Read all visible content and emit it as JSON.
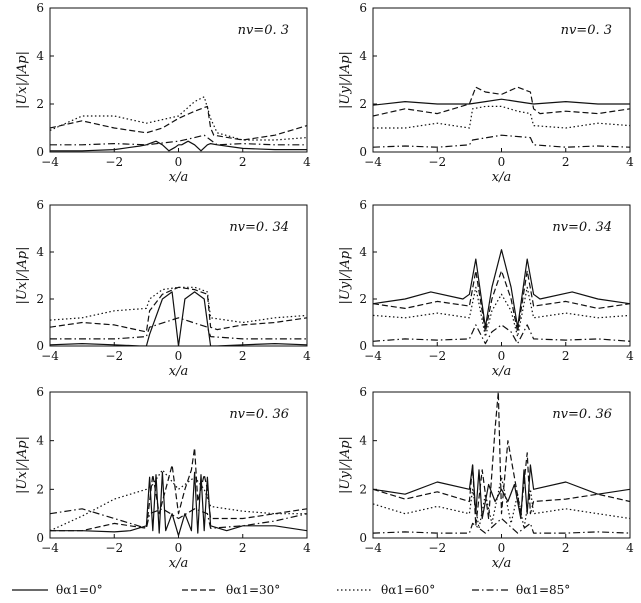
{
  "legend": [
    {
      "label": "θα1=0°",
      "dash": "solid"
    },
    {
      "label": "θα1=30°",
      "dash": "dashed"
    },
    {
      "label": "θα1=60°",
      "dash": "dotted"
    },
    {
      "label": "θα1=85°",
      "dash": "dashdot"
    }
  ],
  "chart_data": [
    {
      "type": "line",
      "xlabel": "x/a",
      "ylabel": "|Ux|/|Ap|",
      "nv_label": "nv=0. 3",
      "xlim": [
        -4,
        4
      ],
      "ylim": [
        0,
        6
      ],
      "xticks": [
        "-4",
        "-2",
        "0",
        "2",
        "4"
      ],
      "yticks": [
        "0",
        "2",
        "4",
        "6"
      ],
      "series": [
        {
          "name": "θα1=0°",
          "x": [
            -4,
            -3,
            -2,
            -1.2,
            -1,
            -0.9,
            -0.7,
            -0.5,
            -0.3,
            -0.1,
            0,
            0.1,
            0.3,
            0.5,
            0.7,
            0.9,
            1,
            1.2,
            2,
            3,
            4
          ],
          "y": [
            0.05,
            0.05,
            0.1,
            0.25,
            0.3,
            0.35,
            0.45,
            0.3,
            0.05,
            0.2,
            0.3,
            0.3,
            0.45,
            0.3,
            0.05,
            0.3,
            0.35,
            0.3,
            0.15,
            0.1,
            0.1
          ]
        },
        {
          "name": "θα1=30°",
          "x": [
            -4,
            -3,
            -2,
            -1,
            -0.5,
            0,
            0.5,
            0.9,
            1,
            1.1,
            2,
            3,
            3.5,
            4
          ],
          "y": [
            1.0,
            1.3,
            1.0,
            0.8,
            1.0,
            1.4,
            1.7,
            1.9,
            1.0,
            0.7,
            0.5,
            0.7,
            0.9,
            1.1
          ]
        },
        {
          "name": "θα1=60°",
          "x": [
            -4,
            -3,
            -2,
            -1,
            0,
            0.5,
            0.8,
            1,
            1.2,
            2,
            3,
            4
          ],
          "y": [
            0.9,
            1.5,
            1.5,
            1.2,
            1.5,
            2.1,
            2.3,
            1.4,
            0.8,
            0.5,
            0.5,
            0.6
          ]
        },
        {
          "name": "θα1=85°",
          "x": [
            -4,
            -3,
            -2,
            -1,
            0,
            0.5,
            0.8,
            1,
            1.2,
            2,
            3,
            4
          ],
          "y": [
            0.3,
            0.3,
            0.35,
            0.3,
            0.45,
            0.6,
            0.7,
            0.5,
            0.3,
            0.35,
            0.3,
            0.3
          ]
        }
      ]
    },
    {
      "type": "line",
      "xlabel": "x/a",
      "ylabel": "|Uy|/|Ap|",
      "nv_label": "nv=0. 3",
      "xlim": [
        -4,
        4
      ],
      "ylim": [
        0,
        6
      ],
      "xticks": [
        "-4",
        "-2",
        "0",
        "2",
        "4"
      ],
      "yticks": [
        "0",
        "2",
        "4",
        "6"
      ],
      "series": [
        {
          "name": "θα1=0°",
          "x": [
            -4,
            -3,
            -2,
            -1,
            -0.5,
            0,
            0.5,
            1,
            2,
            3,
            4
          ],
          "y": [
            1.95,
            2.1,
            2.0,
            2.0,
            2.1,
            2.2,
            2.1,
            2.0,
            2.1,
            2.0,
            2.0
          ]
        },
        {
          "name": "θα1=30°",
          "x": [
            -4,
            -3,
            -2,
            -1,
            -0.8,
            -0.5,
            0,
            0.5,
            0.9,
            1,
            1.2,
            2,
            3,
            4
          ],
          "y": [
            1.5,
            1.8,
            1.6,
            2.0,
            2.7,
            2.5,
            2.4,
            2.7,
            2.5,
            1.8,
            1.6,
            1.7,
            1.6,
            1.8
          ]
        },
        {
          "name": "θα1=60°",
          "x": [
            -4,
            -3,
            -2,
            -1,
            -0.9,
            -0.5,
            0,
            0.5,
            0.9,
            1,
            2,
            3,
            4
          ],
          "y": [
            1.0,
            1.0,
            1.2,
            1.0,
            1.8,
            1.9,
            1.9,
            1.7,
            1.6,
            1.1,
            1.0,
            1.2,
            1.1
          ]
        },
        {
          "name": "θα1=85°",
          "x": [
            -4,
            -3,
            -2,
            -1,
            -0.9,
            0,
            0.9,
            1,
            2,
            3,
            4
          ],
          "y": [
            0.2,
            0.25,
            0.2,
            0.3,
            0.5,
            0.7,
            0.6,
            0.3,
            0.2,
            0.25,
            0.2
          ]
        }
      ]
    },
    {
      "type": "line",
      "xlabel": "x/a",
      "ylabel": "|Ux|/|Ap|",
      "nv_label": "nv=0. 34",
      "xlim": [
        -4,
        4
      ],
      "ylim": [
        0,
        6
      ],
      "xticks": [
        "-4",
        "-2",
        "0",
        "2",
        "4"
      ],
      "yticks": [
        "0",
        "2",
        "4",
        "6"
      ],
      "series": [
        {
          "name": "θα1=0°",
          "x": [
            -4,
            -3,
            -2,
            -1.2,
            -1,
            -0.9,
            -0.5,
            -0.2,
            0,
            0.2,
            0.5,
            0.8,
            0.95,
            1,
            1.2,
            2,
            3,
            4
          ],
          "y": [
            0.05,
            0.1,
            0.05,
            0.0,
            0.0,
            0.5,
            2.0,
            2.3,
            0.0,
            2.0,
            2.3,
            2.0,
            0.5,
            0.0,
            0.0,
            0.05,
            0.1,
            0.05
          ]
        },
        {
          "name": "θα1=30°",
          "x": [
            -4,
            -3,
            -2,
            -1,
            -0.9,
            -0.5,
            0,
            0.5,
            0.9,
            1,
            1.2,
            2,
            3,
            4
          ],
          "y": [
            0.8,
            1.0,
            0.9,
            0.6,
            1.5,
            2.2,
            2.5,
            2.4,
            2.2,
            0.8,
            0.7,
            0.9,
            1.0,
            1.2
          ]
        },
        {
          "name": "θα1=60°",
          "x": [
            -4,
            -3,
            -2,
            -1,
            -0.9,
            -0.5,
            0,
            0.5,
            0.9,
            1,
            2,
            3,
            4
          ],
          "y": [
            1.1,
            1.2,
            1.5,
            1.6,
            2.0,
            2.4,
            2.5,
            2.5,
            2.3,
            1.2,
            1.0,
            1.2,
            1.3
          ]
        },
        {
          "name": "θα1=85°",
          "x": [
            -4,
            -3,
            -2,
            -1,
            -0.9,
            0,
            0.9,
            1,
            2,
            3,
            4
          ],
          "y": [
            0.3,
            0.3,
            0.3,
            0.4,
            0.8,
            1.2,
            0.8,
            0.4,
            0.3,
            0.3,
            0.3
          ]
        }
      ]
    },
    {
      "type": "line",
      "xlabel": "x/a",
      "ylabel": "|Uy|/|Ap|",
      "nv_label": "nv=0. 34",
      "xlim": [
        -4,
        4
      ],
      "ylim": [
        0,
        6
      ],
      "xticks": [
        "-4",
        "-2",
        "0",
        "2",
        "4"
      ],
      "yticks": [
        "0",
        "2",
        "4",
        "6"
      ],
      "series": [
        {
          "name": "θα1=0°",
          "x": [
            -4,
            -3,
            -2.2,
            -1.2,
            -1,
            -0.8,
            -0.5,
            -0.3,
            0,
            0.3,
            0.5,
            0.8,
            1,
            1.2,
            2.2,
            3,
            4
          ],
          "y": [
            1.8,
            2.0,
            2.3,
            2.0,
            2.2,
            3.7,
            0.8,
            2.5,
            4.1,
            2.5,
            0.8,
            3.7,
            2.2,
            2.0,
            2.3,
            2.0,
            1.8
          ]
        },
        {
          "name": "θα1=30°",
          "x": [
            -4,
            -3,
            -2,
            -1,
            -0.8,
            -0.5,
            -0.3,
            0,
            0.3,
            0.5,
            0.8,
            1,
            2,
            3,
            4
          ],
          "y": [
            1.8,
            1.6,
            1.9,
            1.7,
            3.2,
            0.6,
            2.0,
            3.2,
            2.0,
            0.6,
            3.2,
            1.7,
            1.9,
            1.6,
            1.8
          ]
        },
        {
          "name": "θα1=60°",
          "x": [
            -4,
            -3,
            -2,
            -1,
            -0.8,
            -0.5,
            -0.3,
            0,
            0.3,
            0.5,
            0.8,
            1,
            2,
            3,
            4
          ],
          "y": [
            1.3,
            1.2,
            1.4,
            1.2,
            2.5,
            0.4,
            1.5,
            2.2,
            1.5,
            0.4,
            2.5,
            1.2,
            1.4,
            1.2,
            1.3
          ]
        },
        {
          "name": "θα1=85°",
          "x": [
            -4,
            -3,
            -2,
            -1,
            -0.8,
            -0.5,
            -0.3,
            0,
            0.3,
            0.5,
            0.8,
            1,
            2,
            3,
            4
          ],
          "y": [
            0.2,
            0.3,
            0.25,
            0.3,
            0.9,
            0.1,
            0.6,
            0.9,
            0.6,
            0.1,
            0.9,
            0.3,
            0.25,
            0.3,
            0.2
          ]
        }
      ]
    },
    {
      "type": "line",
      "xlabel": "x/a",
      "ylabel": "|Ux|/|Ap|",
      "nv_label": "nv=0. 36",
      "xlim": [
        -4,
        4
      ],
      "ylim": [
        0,
        6
      ],
      "xticks": [
        "-4",
        "-2",
        "0",
        "2",
        "4"
      ],
      "yticks": [
        "0",
        "2",
        "4",
        "6"
      ],
      "series": [
        {
          "name": "θα1=0°",
          "x": [
            -4,
            -3,
            -2,
            -1.5,
            -1,
            -0.9,
            -0.8,
            -0.7,
            -0.6,
            -0.5,
            -0.4,
            -0.2,
            0,
            0.2,
            0.4,
            0.5,
            0.6,
            0.7,
            0.8,
            0.9,
            1,
            1.5,
            2,
            3,
            4
          ],
          "y": [
            0.3,
            0.3,
            0.25,
            0.3,
            0.5,
            2.5,
            0.3,
            2.6,
            0.2,
            2.7,
            0.3,
            1.0,
            0.1,
            1.0,
            0.3,
            2.7,
            0.2,
            2.6,
            0.3,
            2.5,
            0.5,
            0.3,
            0.5,
            0.5,
            0.3
          ]
        },
        {
          "name": "θα1=30°",
          "x": [
            -4,
            -3,
            -2,
            -1,
            -0.9,
            -0.8,
            -0.6,
            -0.4,
            -0.2,
            0,
            0.2,
            0.4,
            0.5,
            0.6,
            0.8,
            0.9,
            1,
            2,
            3,
            4
          ],
          "y": [
            0.3,
            0.3,
            0.6,
            0.4,
            1.5,
            2.6,
            1.0,
            2.0,
            3.0,
            1.0,
            2.0,
            2.8,
            3.7,
            1.5,
            2.6,
            2.0,
            0.8,
            0.8,
            1.0,
            1.2
          ]
        },
        {
          "name": "θα1=60°",
          "x": [
            -4,
            -3,
            -2,
            -1,
            -0.8,
            -0.5,
            0,
            0.5,
            0.8,
            1,
            2,
            3,
            4
          ],
          "y": [
            0.3,
            0.9,
            1.6,
            2.0,
            2.2,
            2.8,
            2.0,
            2.5,
            2.0,
            1.3,
            1.1,
            1.0,
            1.0
          ]
        },
        {
          "name": "θα1=85°",
          "x": [
            -4,
            -3,
            -2,
            -1,
            -0.9,
            -0.5,
            0,
            0.5,
            0.9,
            1,
            2,
            3,
            4
          ],
          "y": [
            1.0,
            1.2,
            0.8,
            0.4,
            1.0,
            1.2,
            0.8,
            1.2,
            1.0,
            0.4,
            0.5,
            0.7,
            1.0
          ]
        }
      ]
    },
    {
      "type": "line",
      "xlabel": "x/a",
      "ylabel": "|Uy|/|Ap|",
      "nv_label": "nv=0. 36",
      "xlim": [
        -4,
        4
      ],
      "ylim": [
        0,
        6
      ],
      "xticks": [
        "-4",
        "-2",
        "0",
        "2",
        "4"
      ],
      "yticks": [
        "0",
        "2",
        "4",
        "6"
      ],
      "series": [
        {
          "name": "θα1=0°",
          "x": [
            -4,
            -3,
            -2,
            -1,
            -0.9,
            -0.8,
            -0.7,
            -0.6,
            -0.4,
            -0.2,
            0,
            0.2,
            0.4,
            0.6,
            0.7,
            0.8,
            0.9,
            1,
            2,
            3,
            4
          ],
          "y": [
            2.0,
            1.8,
            2.3,
            2.0,
            3.0,
            1.0,
            2.8,
            0.8,
            2.2,
            1.5,
            2.0,
            1.5,
            2.2,
            0.8,
            2.8,
            1.0,
            3.0,
            2.0,
            2.3,
            1.8,
            2.0
          ]
        },
        {
          "name": "θα1=30°",
          "x": [
            -4,
            -3,
            -2,
            -1,
            -0.9,
            -0.8,
            -0.6,
            -0.4,
            -0.2,
            -0.1,
            0,
            0.2,
            0.4,
            0.6,
            0.8,
            0.9,
            1,
            2,
            3,
            4
          ],
          "y": [
            2.0,
            1.6,
            1.9,
            1.5,
            3.0,
            0.5,
            2.8,
            0.8,
            4.5,
            6.0,
            1.0,
            4.0,
            2.5,
            1.0,
            3.5,
            1.0,
            1.5,
            1.6,
            1.8,
            1.5
          ]
        },
        {
          "name": "θα1=60°",
          "x": [
            -4,
            -3,
            -2,
            -1,
            -0.9,
            -0.7,
            -0.5,
            -0.3,
            0,
            0.3,
            0.5,
            0.7,
            0.9,
            1,
            2,
            3,
            4
          ],
          "y": [
            1.4,
            1.0,
            1.3,
            1.0,
            2.0,
            0.4,
            1.8,
            0.6,
            2.5,
            0.6,
            1.8,
            0.4,
            2.0,
            1.0,
            1.2,
            1.0,
            0.8
          ]
        },
        {
          "name": "θα1=85°",
          "x": [
            -4,
            -3,
            -2,
            -1,
            -0.9,
            -0.5,
            0,
            0.5,
            0.9,
            1,
            2,
            3,
            4
          ],
          "y": [
            0.2,
            0.25,
            0.2,
            0.2,
            0.6,
            0.2,
            0.8,
            0.2,
            0.6,
            0.2,
            0.2,
            0.25,
            0.2
          ]
        }
      ]
    }
  ]
}
